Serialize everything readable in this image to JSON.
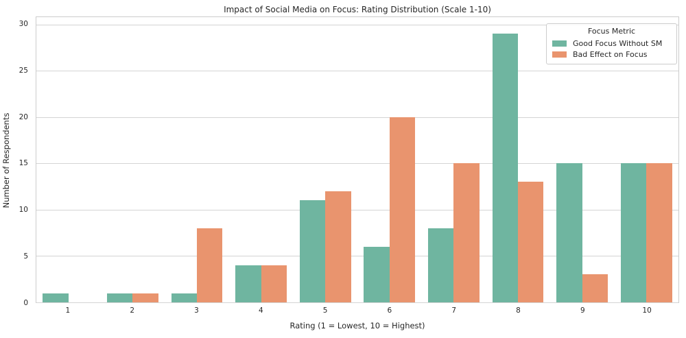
{
  "chart_data": {
    "type": "bar",
    "title": "Impact of Social Media on Focus: Rating Distribution (Scale 1-10)",
    "xlabel": "Rating (1 = Lowest, 10 = Highest)",
    "ylabel": "Number of Respondents",
    "categories": [
      "1",
      "2",
      "3",
      "4",
      "5",
      "6",
      "7",
      "8",
      "9",
      "10"
    ],
    "series": [
      {
        "name": "Good Focus Without SM",
        "color": "#6fb5a0",
        "values": [
          1,
          1,
          1,
          4,
          11,
          6,
          8,
          29,
          15,
          15
        ]
      },
      {
        "name": "Bad Effect on Focus",
        "color": "#e9946e",
        "values": [
          0,
          1,
          8,
          4,
          12,
          20,
          15,
          13,
          3,
          15
        ]
      }
    ],
    "yticks": [
      0,
      5,
      10,
      15,
      20,
      25,
      30
    ],
    "ylim": [
      0,
      30.8
    ],
    "grid": "horizontal",
    "legend": {
      "title": "Focus Metric",
      "position": "upper right"
    }
  },
  "style": {
    "grid_color": "#d4d4d4",
    "spine_color": "#cccccc",
    "text_color": "#262626",
    "background": "#ffffff"
  }
}
